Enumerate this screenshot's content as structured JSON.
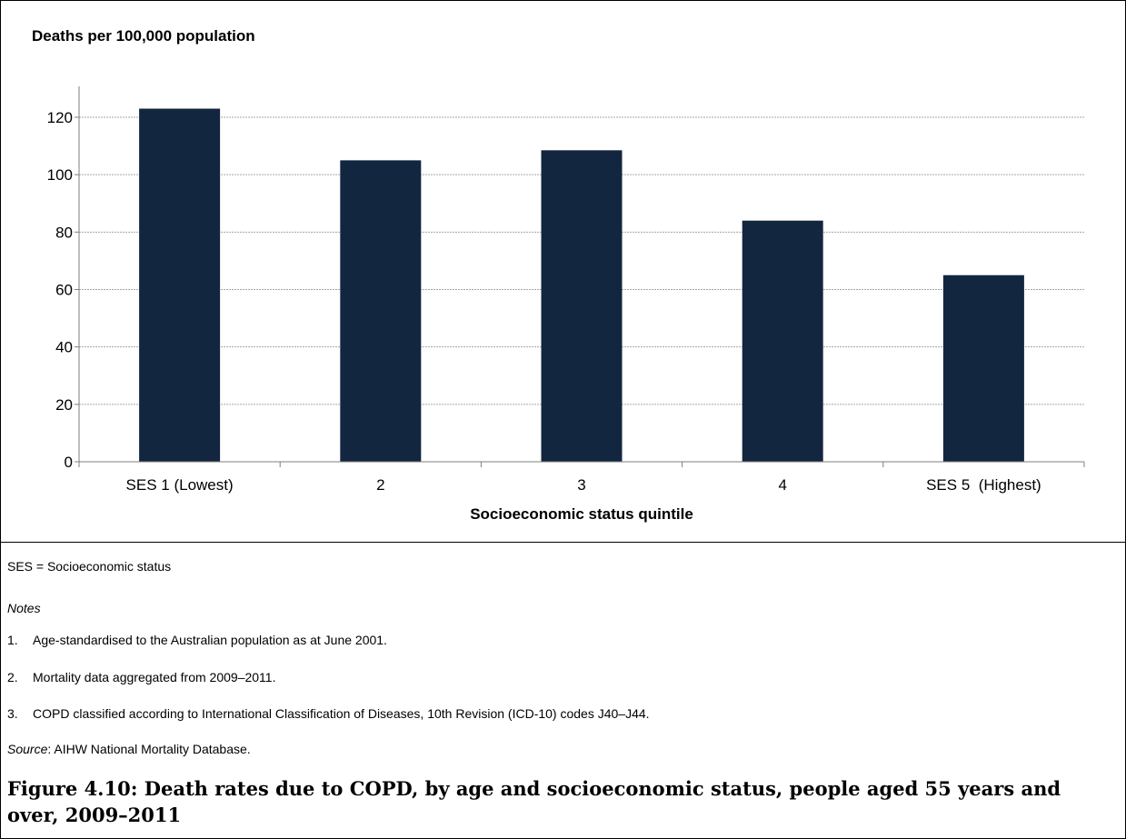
{
  "chart_data": {
    "type": "bar",
    "ylabel": "Deaths per 100,000 population",
    "xlabel": "Socioeconomic status quintile",
    "categories": [
      "SES 1 (Lowest)",
      "2",
      "3",
      "4",
      "SES 5  (Highest)"
    ],
    "values": [
      123,
      105,
      108.5,
      84,
      65
    ],
    "ylim": [
      0,
      120
    ],
    "yticks": [
      0,
      20,
      40,
      60,
      80,
      100,
      120
    ],
    "grid": true,
    "bar_color": "#13263F"
  },
  "notes": {
    "abbreviation": "SES = Socioeconomic status",
    "heading": "Notes",
    "items": [
      {
        "num": "1.",
        "text": "Age-standardised to the Australian population as at June 2001."
      },
      {
        "num": "2.",
        "text": "Mortality data aggregated from 2009–2011."
      },
      {
        "num": "3.",
        "text": "COPD classified according to International Classification of Diseases, 10th Revision (ICD-10) codes J40–J44."
      }
    ],
    "source_label": "Source",
    "source_text": ": AIHW National Mortality Database."
  },
  "caption": "Figure 4.10: Death rates due to COPD, by age and socioeconomic status, people aged 55 years and over, 2009–2011"
}
